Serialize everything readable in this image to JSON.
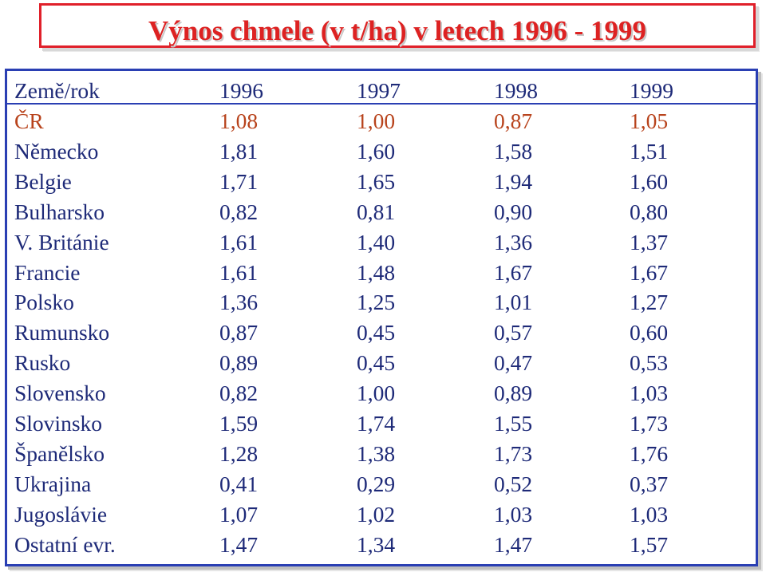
{
  "title": "Výnos chmele (v t/ha) v letech 1996 - 1999",
  "table": {
    "header": [
      "Země/rok",
      "1996",
      "1997",
      "1998",
      "1999"
    ],
    "rows": [
      [
        "ČR",
        "1,08",
        "1,00",
        "0,87",
        "1,05"
      ],
      [
        "Německo",
        "1,81",
        "1,60",
        "1,58",
        "1,51"
      ],
      [
        "Belgie",
        "1,71",
        "1,65",
        "1,94",
        "1,60"
      ],
      [
        "Bulharsko",
        "0,82",
        "0,81",
        "0,90",
        "0,80"
      ],
      [
        "V. Británie",
        "1,61",
        "1,40",
        "1,36",
        "1,37"
      ],
      [
        "Francie",
        "1,61",
        "1,48",
        "1,67",
        "1,67"
      ],
      [
        "Polsko",
        "1,36",
        "1,25",
        "1,01",
        "1,27"
      ],
      [
        "Rumunsko",
        "0,87",
        "0,45",
        "0,57",
        "0,60"
      ],
      [
        "Rusko",
        "0,89",
        "0,45",
        "0,47",
        "0,53"
      ],
      [
        "Slovensko",
        "0,82",
        "1,00",
        "0,89",
        "1,03"
      ],
      [
        "Slovinsko",
        "1,59",
        "1,74",
        "1,55",
        "1,73"
      ],
      [
        "Španělsko",
        "1,28",
        "1,38",
        "1,73",
        "1,76"
      ],
      [
        "Ukrajina",
        "0,41",
        "0,29",
        "0,52",
        "0,37"
      ],
      [
        "Jugoslávie",
        "1,07",
        "1,02",
        "1,03",
        "1,03"
      ],
      [
        "Ostatní evr.",
        "1,47",
        "1,34",
        "1,47",
        "1,57"
      ]
    ]
  },
  "colors": {
    "title": "#dd2222",
    "title_border": "#e0202a",
    "table_border": "#2a3fb3",
    "text": "#1e2a78",
    "highlight_row": "#b8431c"
  }
}
